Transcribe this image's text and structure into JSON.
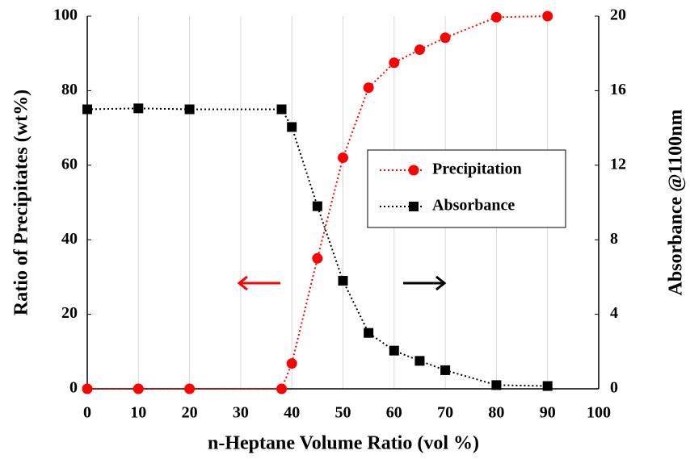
{
  "chart_data": {
    "type": "line",
    "x_label": "n-Heptane Volume Ratio (vol %)",
    "y_label": "Ratio of Precipitates (wt%)",
    "y2_label": "Absorbance @1100nm",
    "x": [
      0,
      10,
      20,
      38,
      40,
      45,
      50,
      55,
      60,
      65,
      70,
      80,
      90
    ],
    "series": [
      {
        "name": "Precipitation",
        "color": "#ff0000",
        "marker": "circle",
        "linestyle": "dotted",
        "values": [
          0,
          0,
          0,
          0,
          6.8,
          35,
          62,
          80.8,
          87.5,
          91,
          94.2,
          99.7,
          100
        ]
      },
      {
        "name": "Absorbance",
        "color": "#000000",
        "marker": "square",
        "linestyle": "dotted",
        "axis": "y2",
        "values": [
          15,
          15.05,
          15,
          15,
          14.05,
          9.8,
          5.8,
          3.0,
          2.05,
          1.5,
          1.0,
          0.2,
          0.15
        ]
      }
    ],
    "xlim": [
      0,
      100
    ],
    "xticks": [
      0,
      10,
      20,
      30,
      40,
      50,
      60,
      70,
      80,
      90,
      100
    ],
    "ylim": [
      0,
      100
    ],
    "yticks": [
      0,
      20,
      40,
      60,
      80,
      100
    ],
    "y2lim": [
      0,
      20
    ],
    "y2ticks": [
      0,
      4,
      8,
      12,
      16,
      20
    ],
    "grid": "x",
    "legend": "center right"
  }
}
